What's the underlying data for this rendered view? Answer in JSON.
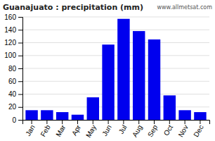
{
  "chart_data": {
    "type": "bar",
    "title": "Guanajuato : precipitation (mm)",
    "categories": [
      "Jan",
      "Feb",
      "Mar",
      "Apr",
      "May",
      "Jun",
      "Jul",
      "Aug",
      "Sep",
      "Oct",
      "Nov",
      "Dec"
    ],
    "values": [
      15,
      15,
      12,
      8,
      35,
      117,
      157,
      138,
      125,
      38,
      15,
      12
    ],
    "color": "#0000ee",
    "ylim": [
      0,
      160
    ],
    "yticks": [
      0,
      20,
      40,
      60,
      80,
      100,
      120,
      140,
      160
    ],
    "grid": true,
    "annotations": [
      "www.allmetsat.com"
    ]
  }
}
